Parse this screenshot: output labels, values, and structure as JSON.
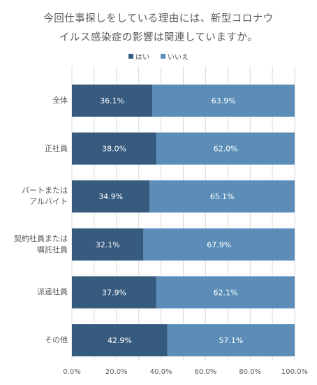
{
  "title_lines": [
    "今回仕事探しをしている理由には、新型コロナウ",
    "イルス感染症の影響は関連していますか。"
  ],
  "colors": {
    "yes": "#375a7f",
    "no": "#5b8db8",
    "grid": "#d9d9d9"
  },
  "chart_data": {
    "type": "bar",
    "orientation": "horizontal",
    "stacked": true,
    "percent": true,
    "title": "今回仕事探しをしている理由には、新型コロナウイルス感染症の影響は関連していますか。",
    "legend": [
      "はい",
      "いいえ"
    ],
    "legend_position": "top",
    "categories": [
      [
        "全体"
      ],
      [
        "正社員"
      ],
      [
        "パートまたは",
        "アルバイト"
      ],
      [
        "契約社員または",
        "嘱託社員"
      ],
      [
        "派遣社員"
      ],
      [
        "その他"
      ]
    ],
    "series": [
      {
        "name": "はい",
        "values": [
          36.1,
          38.0,
          34.9,
          32.1,
          37.9,
          42.9
        ],
        "labels": [
          "36.1%",
          "38.0%",
          "34.9%",
          "32.1%",
          "37.9%",
          "42.9%"
        ]
      },
      {
        "name": "いいえ",
        "values": [
          63.9,
          62.0,
          65.1,
          67.9,
          62.1,
          57.1
        ],
        "labels": [
          "63.9%",
          "62.0%",
          "65.1%",
          "67.9%",
          "62.1%",
          "57.1%"
        ]
      }
    ],
    "xlim": [
      0,
      100
    ],
    "xticks": [
      "0.0%",
      "20.0%",
      "40.0%",
      "60.0%",
      "80.0%",
      "100.0%"
    ],
    "grid": true
  }
}
